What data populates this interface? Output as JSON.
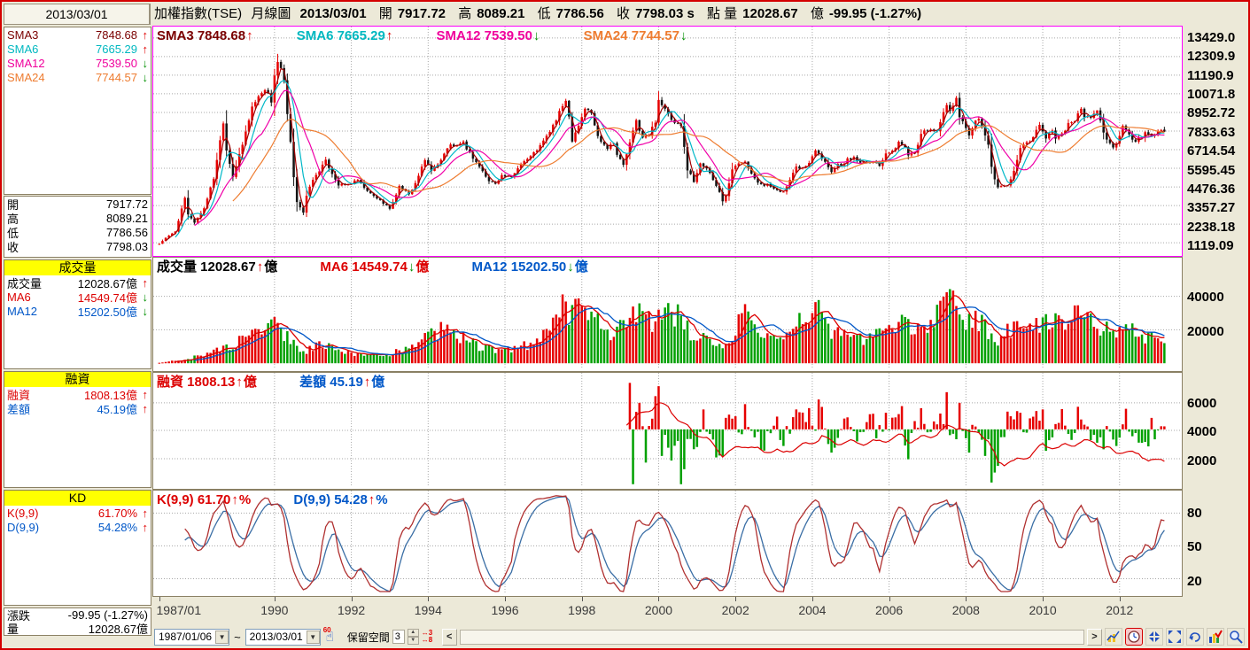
{
  "date_box": "2013/03/01",
  "header": {
    "name": "加權指數(TSE)",
    "chart_type": "月線圖",
    "date": "2013/03/01",
    "o_label": "開",
    "o": "7917.72",
    "h_label": "高",
    "h": "8089.21",
    "l_label": "低",
    "l": "7786.56",
    "c_label": "收",
    "c": "7798.03 s",
    "pt_label": "點  量",
    "vol": "12028.67",
    "unit_label": "億",
    "change": "-99.95 (-1.27%)"
  },
  "sidebar": {
    "sma": [
      {
        "label": "SMA3",
        "value": "7848.68",
        "arrow": "↑",
        "style": "color:#7a0000"
      },
      {
        "label": "SMA6",
        "value": "7665.29",
        "arrow": "↑",
        "style": "color:#00b8c0"
      },
      {
        "label": "SMA12",
        "value": "7539.50",
        "arrow": "↓",
        "style": "color:#f0009c"
      },
      {
        "label": "SMA24",
        "value": "7744.57",
        "arrow": "↓",
        "style": "color:#ee7c30"
      }
    ],
    "ohlc": [
      {
        "label": "開",
        "value": "7917.72"
      },
      {
        "label": "高",
        "value": "8089.21"
      },
      {
        "label": "低",
        "value": "7786.56"
      },
      {
        "label": "收",
        "value": "7798.03"
      }
    ],
    "vol": {
      "header": "成交量",
      "rows": [
        {
          "label": "成交量",
          "value": "12028.67億",
          "arrow": "↑",
          "style": "color:#000000"
        },
        {
          "label": "MA6",
          "value": "14549.74億",
          "arrow": "↓",
          "style": "color:#dc0000"
        },
        {
          "label": "MA12",
          "value": "15202.50億",
          "arrow": "↓",
          "style": "color:#0057c8"
        }
      ]
    },
    "fin": {
      "header": "融資",
      "rows": [
        {
          "label": "融資",
          "value": "1808.13億",
          "arrow": "↑",
          "style": "color:#dc0000"
        },
        {
          "label": "差額",
          "value": "45.19億",
          "arrow": "↑",
          "style": "color:#0057c8"
        }
      ]
    },
    "kd": {
      "header": "KD",
      "rows": [
        {
          "label": "K(9,9)",
          "value": "61.70%",
          "arrow": "↑",
          "style": "color:#dc0000"
        },
        {
          "label": "D(9,9)",
          "value": "54.28%",
          "arrow": "↑",
          "style": "color:#0057c8"
        }
      ]
    },
    "footer": [
      {
        "label": "漲跌",
        "value": "-99.95 (-1.27%)"
      },
      {
        "label": "量",
        "value": "12028.67億"
      }
    ]
  },
  "legends": {
    "main": [
      {
        "text": "SMA3 7848.68",
        "arrow": "↑",
        "suffix": "",
        "style": "color:#7a0000"
      },
      {
        "text": "SMA6 7665.29",
        "arrow": "↑",
        "suffix": "",
        "style": "color:#00b8c0"
      },
      {
        "text": "SMA12 7539.50",
        "arrow": "↓",
        "suffix": "",
        "style": "color:#f0009c"
      },
      {
        "text": "SMA24 7744.57",
        "arrow": "↓",
        "suffix": "",
        "style": "color:#ee7c30"
      }
    ],
    "volume": [
      {
        "text": "成交量 12028.67",
        "arrow": "↑",
        "suffix": "億",
        "style": "color:#000000"
      },
      {
        "text": "MA6 14549.74",
        "arrow": "↓",
        "suffix": "億",
        "style": "color:#dc0000"
      },
      {
        "text": "MA12 15202.50",
        "arrow": "↓",
        "suffix": "億",
        "style": "color:#0057c8"
      }
    ],
    "margin": [
      {
        "text": "融資 1808.13",
        "arrow": "↑",
        "suffix": "億",
        "style": "color:#dc0000"
      },
      {
        "text": "差額 45.19",
        "arrow": "↑",
        "suffix": "億",
        "style": "color:#0057c8"
      }
    ],
    "kd": [
      {
        "text": "K(9,9) 61.70",
        "arrow": "↑",
        "suffix": "%",
        "style": "color:#dc0000"
      },
      {
        "text": "D(9,9) 54.28",
        "arrow": "↑",
        "suffix": "%",
        "style": "color:#0057c8"
      }
    ]
  },
  "axes": {
    "main_y": [
      "13429.0",
      "12309.9",
      "11190.9",
      "10071.8",
      "8952.72",
      "7833.63",
      "6714.54",
      "5595.45",
      "4476.36",
      "3357.27",
      "2238.18",
      "1119.09"
    ],
    "volume_y": [
      "40000",
      "20000"
    ],
    "margin_y": [
      "6000",
      "4000",
      "2000"
    ],
    "kd_y": [
      "80",
      "50",
      "20"
    ],
    "x_ticks": [
      {
        "label": "1987/01",
        "i": 0
      },
      {
        "label": "1990",
        "i": 36
      },
      {
        "label": "1992",
        "i": 60
      },
      {
        "label": "1994",
        "i": 84
      },
      {
        "label": "1996",
        "i": 108
      },
      {
        "label": "1998",
        "i": 132
      },
      {
        "label": "2000",
        "i": 156
      },
      {
        "label": "2002",
        "i": 180
      },
      {
        "label": "2004",
        "i": 204
      },
      {
        "label": "2006",
        "i": 228
      },
      {
        "label": "2008",
        "i": 252
      },
      {
        "label": "2010",
        "i": 276
      },
      {
        "label": "2012",
        "i": 300
      }
    ]
  },
  "toolbar": {
    "from_date": "1987/01/06",
    "separator": "~",
    "to_date": "2013/03/01",
    "hand_badge": "60",
    "reserve_label": "保留空間",
    "reserve_value": "3",
    "spacing_top": "↔3",
    "spacing_bottom": "↔8",
    "scroll_left": "<",
    "scroll_right": ">"
  },
  "chart_data": {
    "type": "candlestick",
    "title": "加權指數(TSE) 月線圖",
    "start": "1987/01",
    "end": "2013/03",
    "months": 315,
    "last_bar": {
      "open": 7917.72,
      "high": 8089.21,
      "low": 7786.56,
      "close": 7798.03,
      "volume": 12028.67,
      "margin": 1808.13,
      "margin_diff": 45.19,
      "k": 61.7,
      "d": 54.28
    },
    "price_ylim": [
      1119.09,
      13429.08
    ],
    "close_anchors": [
      [
        0,
        1063
      ],
      [
        2,
        1405
      ],
      [
        5,
        1800
      ],
      [
        8,
        3800
      ],
      [
        9,
        2800
      ],
      [
        10,
        2600
      ],
      [
        11,
        2339
      ],
      [
        14,
        3200
      ],
      [
        17,
        5000
      ],
      [
        20,
        8402
      ],
      [
        21,
        6700
      ],
      [
        23,
        5119
      ],
      [
        26,
        7000
      ],
      [
        29,
        9300
      ],
      [
        32,
        10180
      ],
      [
        33,
        10400
      ],
      [
        35,
        9624
      ],
      [
        36,
        11200
      ],
      [
        37,
        11983
      ],
      [
        38,
        11500
      ],
      [
        39,
        10800
      ],
      [
        40,
        8800
      ],
      [
        41,
        7100
      ],
      [
        42,
        5100
      ],
      [
        43,
        3600
      ],
      [
        45,
        2912
      ],
      [
        46,
        3900
      ],
      [
        47,
        4530
      ],
      [
        49,
        5200
      ],
      [
        52,
        6033
      ],
      [
        54,
        5300
      ],
      [
        56,
        4600
      ],
      [
        59,
        4601
      ],
      [
        62,
        4900
      ],
      [
        65,
        4200
      ],
      [
        68,
        3800
      ],
      [
        71,
        3377
      ],
      [
        72,
        3135
      ],
      [
        75,
        4500
      ],
      [
        78,
        4000
      ],
      [
        80,
        4700
      ],
      [
        83,
        6071
      ],
      [
        85,
        5500
      ],
      [
        87,
        5800
      ],
      [
        89,
        6500
      ],
      [
        91,
        7000
      ],
      [
        93,
        6889
      ],
      [
        95,
        7111
      ],
      [
        97,
        6509
      ],
      [
        100,
        5700
      ],
      [
        103,
        4810
      ],
      [
        105,
        4700
      ],
      [
        107,
        5159
      ],
      [
        110,
        5032
      ],
      [
        113,
        5900
      ],
      [
        116,
        6300
      ],
      [
        119,
        6934
      ],
      [
        121,
        7500
      ],
      [
        124,
        8500
      ],
      [
        127,
        9757
      ],
      [
        128,
        8708
      ],
      [
        129,
        7300
      ],
      [
        130,
        7797
      ],
      [
        131,
        8187
      ],
      [
        133,
        9202
      ],
      [
        135,
        8900
      ],
      [
        137,
        7500
      ],
      [
        140,
        6833
      ],
      [
        142,
        7200
      ],
      [
        143,
        6418
      ],
      [
        145,
        5798
      ],
      [
        147,
        7100
      ],
      [
        149,
        8467
      ],
      [
        151,
        7400
      ],
      [
        153,
        7600
      ],
      [
        155,
        8448
      ],
      [
        156,
        9744
      ],
      [
        157,
        9435
      ],
      [
        159,
        8777
      ],
      [
        161,
        8265
      ],
      [
        163,
        8114
      ],
      [
        164,
        6841
      ],
      [
        165,
        5544
      ],
      [
        166,
        5256
      ],
      [
        167,
        4739
      ],
      [
        169,
        5936
      ],
      [
        171,
        5600
      ],
      [
        173,
        4900
      ],
      [
        175,
        4176
      ],
      [
        176,
        3636
      ],
      [
        177,
        3904
      ],
      [
        179,
        5551
      ],
      [
        181,
        5867
      ],
      [
        183,
        6065
      ],
      [
        185,
        5300
      ],
      [
        187,
        4800
      ],
      [
        189,
        4579
      ],
      [
        190,
        4646
      ],
      [
        191,
        4452
      ],
      [
        193,
        4321
      ],
      [
        195,
        4148
      ],
      [
        197,
        4872
      ],
      [
        199,
        5650
      ],
      [
        201,
        5611
      ],
      [
        203,
        5890
      ],
      [
        205,
        6750
      ],
      [
        206,
        6522
      ],
      [
        208,
        5977
      ],
      [
        210,
        5420
      ],
      [
        212,
        5845
      ],
      [
        214,
        5844
      ],
      [
        215,
        6139
      ],
      [
        217,
        6208
      ],
      [
        219,
        5975
      ],
      [
        221,
        6012
      ],
      [
        223,
        6033
      ],
      [
        225,
        5764
      ],
      [
        227,
        6548
      ],
      [
        229,
        6561
      ],
      [
        231,
        7171
      ],
      [
        233,
        6847
      ],
      [
        234,
        6454
      ],
      [
        236,
        6611
      ],
      [
        238,
        7568
      ],
      [
        239,
        7823
      ],
      [
        241,
        7901
      ],
      [
        243,
        7875
      ],
      [
        245,
        8883
      ],
      [
        246,
        9287
      ],
      [
        247,
        8982
      ],
      [
        249,
        9711
      ],
      [
        250,
        8586
      ],
      [
        251,
        8506
      ],
      [
        253,
        7521
      ],
      [
        255,
        8572
      ],
      [
        256,
        8619
      ],
      [
        258,
        7523
      ],
      [
        259,
        7024
      ],
      [
        260,
        5719
      ],
      [
        261,
        4870
      ],
      [
        262,
        4460
      ],
      [
        263,
        4591
      ],
      [
        265,
        4557
      ],
      [
        267,
        5390
      ],
      [
        269,
        6890
      ],
      [
        271,
        7077
      ],
      [
        273,
        7509
      ],
      [
        275,
        8188
      ],
      [
        277,
        7436
      ],
      [
        279,
        7920
      ],
      [
        280,
        7374
      ],
      [
        282,
        7616
      ],
      [
        284,
        8237
      ],
      [
        286,
        8372
      ],
      [
        287,
        8972
      ],
      [
        288,
        9145
      ],
      [
        289,
        8599
      ],
      [
        291,
        8683
      ],
      [
        293,
        9062
      ],
      [
        295,
        7741
      ],
      [
        296,
        7225
      ],
      [
        298,
        6904
      ],
      [
        299,
        7072
      ],
      [
        300,
        7517
      ],
      [
        301,
        8121
      ],
      [
        302,
        7933
      ],
      [
        304,
        7301
      ],
      [
        305,
        7296
      ],
      [
        307,
        7397
      ],
      [
        308,
        7715
      ],
      [
        310,
        7580
      ],
      [
        311,
        7699
      ],
      [
        312,
        7850
      ],
      [
        313,
        7898
      ],
      [
        314,
        7798.03
      ]
    ],
    "volume_anchors": [
      [
        0,
        300
      ],
      [
        8,
        2500
      ],
      [
        12,
        4000
      ],
      [
        20,
        9000
      ],
      [
        24,
        12000
      ],
      [
        29,
        20000
      ],
      [
        36,
        23000
      ],
      [
        40,
        15000
      ],
      [
        45,
        6000
      ],
      [
        50,
        12000
      ],
      [
        56,
        7000
      ],
      [
        66,
        5000
      ],
      [
        72,
        5500
      ],
      [
        78,
        9000
      ],
      [
        83,
        16000
      ],
      [
        88,
        20000
      ],
      [
        95,
        15000
      ],
      [
        100,
        10000
      ],
      [
        107,
        7500
      ],
      [
        112,
        10000
      ],
      [
        119,
        12000
      ],
      [
        126,
        40000
      ],
      [
        128,
        30000
      ],
      [
        133,
        35000
      ],
      [
        140,
        18000
      ],
      [
        146,
        22000
      ],
      [
        149,
        30000
      ],
      [
        155,
        25000
      ],
      [
        157,
        33000
      ],
      [
        161,
        30000
      ],
      [
        167,
        15000
      ],
      [
        172,
        15000
      ],
      [
        176,
        10000
      ],
      [
        180,
        20000
      ],
      [
        183,
        30000
      ],
      [
        189,
        15000
      ],
      [
        195,
        12000
      ],
      [
        199,
        25000
      ],
      [
        206,
        32000
      ],
      [
        210,
        18000
      ],
      [
        215,
        16000
      ],
      [
        220,
        14000
      ],
      [
        227,
        18000
      ],
      [
        232,
        25000
      ],
      [
        239,
        20000
      ],
      [
        246,
        42000
      ],
      [
        251,
        28000
      ],
      [
        256,
        25000
      ],
      [
        262,
        12000
      ],
      [
        268,
        25000
      ],
      [
        275,
        25000
      ],
      [
        280,
        25000
      ],
      [
        287,
        28000
      ],
      [
        289,
        25000
      ],
      [
        295,
        22000
      ],
      [
        299,
        15000
      ],
      [
        302,
        22000
      ],
      [
        308,
        15000
      ],
      [
        311,
        15000
      ],
      [
        313,
        13000
      ],
      [
        314,
        12028.67
      ]
    ],
    "margin_anchors": [
      [
        146,
        4600
      ],
      [
        150,
        5100
      ],
      [
        156,
        5900
      ],
      [
        159,
        5700
      ],
      [
        163,
        4600
      ],
      [
        168,
        3800
      ],
      [
        172,
        3200
      ],
      [
        176,
        2300
      ],
      [
        179,
        2600
      ],
      [
        183,
        3000
      ],
      [
        186,
        2700
      ],
      [
        189,
        2500
      ],
      [
        192,
        2600
      ],
      [
        195,
        2400
      ],
      [
        199,
        2800
      ],
      [
        203,
        3000
      ],
      [
        207,
        3600
      ],
      [
        211,
        3100
      ],
      [
        215,
        3200
      ],
      [
        221,
        3100
      ],
      [
        227,
        3300
      ],
      [
        232,
        3700
      ],
      [
        234,
        3300
      ],
      [
        239,
        3500
      ],
      [
        243,
        3800
      ],
      [
        246,
        4200
      ],
      [
        250,
        4300
      ],
      [
        253,
        3800
      ],
      [
        256,
        4000
      ],
      [
        259,
        3200
      ],
      [
        262,
        1750
      ],
      [
        264,
        1700
      ],
      [
        269,
        1900
      ],
      [
        272,
        2300
      ],
      [
        276,
        2900
      ],
      [
        281,
        2800
      ],
      [
        285,
        3000
      ],
      [
        289,
        3300
      ],
      [
        294,
        3000
      ],
      [
        299,
        2400
      ],
      [
        302,
        2600
      ],
      [
        306,
        2200
      ],
      [
        309,
        2000
      ],
      [
        311,
        1900
      ],
      [
        313,
        1820
      ],
      [
        314,
        1808.13
      ]
    ],
    "margin_spikes": {
      "146": 350,
      "147": 700,
      "148": -1200,
      "150": 400,
      "152": -500,
      "155": 500,
      "156": 650,
      "157": -400,
      "163": -1500,
      "164": -600,
      "170": 300,
      "176": -400,
      "183": 380,
      "189": -320,
      "195": -250,
      "199": 300,
      "203": 320,
      "206": 450,
      "210": -350,
      "227": 250,
      "232": 350,
      "246": 560,
      "250": 400,
      "253": -350,
      "258": -400,
      "260": -800,
      "261": -650,
      "262": -550,
      "269": 250,
      "276": 300,
      "287": 340,
      "295": -300,
      "299": -250,
      "302": 310,
      "306": -200,
      "311": -150,
      "314": 45.19
    },
    "sma_periods": [
      3,
      6,
      12,
      24
    ],
    "sma_colors": [
      "#a00000",
      "#00b8c8",
      "#f000a8",
      "#ee7c30"
    ],
    "vol_ma": [
      {
        "p": 6,
        "color": "#dc0000"
      },
      {
        "p": 12,
        "color": "#0057c8"
      }
    ],
    "kd_period": 9,
    "colors": {
      "up": "#e60000",
      "down": "#141414",
      "vol_up": "#e60000",
      "vol_down": "#00a000",
      "margin_line": "#dc0000",
      "diff_up": "#e60000",
      "diff_down": "#00a000",
      "k_line": "#b03030",
      "d_line": "#3a6ea5",
      "grid": "#a8a8a8"
    }
  }
}
